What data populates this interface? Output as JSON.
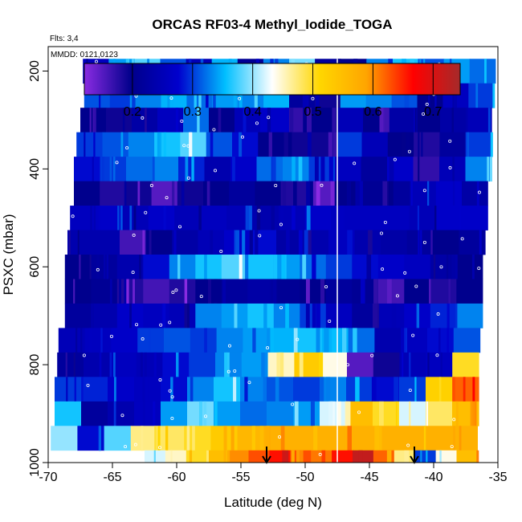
{
  "chart_data": {
    "type": "heatmap",
    "title": "ORCAS RF03-4 Methyl_Iodide_TOGA",
    "flights_label": "Flts: 3,4",
    "date_label": "MMDD: 0121,0123",
    "xlabel": "Latitude (deg N)",
    "ylabel": "PSXC (mbar)",
    "xlim": [
      -70,
      -35
    ],
    "ylim": [
      1000,
      150
    ],
    "x_ticks": [
      "-70",
      "-65",
      "-60",
      "-55",
      "-50",
      "-45",
      "-40",
      "-35"
    ],
    "y_ticks": [
      "200",
      "400",
      "600",
      "800",
      "1000"
    ],
    "colorbar": {
      "range": [
        0.12,
        0.745
      ],
      "ticks": [
        "0.2",
        "0.3",
        "0.4",
        "0.5",
        "0.6",
        "0.7"
      ],
      "gradient": [
        "#8a2be2",
        "#00008b",
        "#0000cd",
        "#00bfff",
        "#ffffff",
        "#ffd700",
        "#ffa500",
        "#ff0000",
        "#a52a2a"
      ]
    },
    "divider_latitude": -47.5,
    "arrows_latitude": [
      -53,
      -41.5
    ],
    "rows": [
      {
        "p": 200,
        "lat_start": -67.3,
        "lat_end": -35.2,
        "values": [
          0.26,
          0.34,
          0.38,
          0.31,
          0.25,
          0.35,
          0.21,
          0.33,
          0.39,
          0.22,
          0.2,
          0.33,
          0.36,
          0.31,
          0.34,
          0.32
        ]
      },
      {
        "p": 250,
        "lat_start": -67.2,
        "lat_end": -35.3,
        "values": [
          0.31,
          0.3,
          0.33,
          0.35,
          0.32,
          0.34,
          0.33,
          0.35,
          0.22,
          0.19,
          0.34,
          0.33,
          0.31,
          0.2,
          0.26,
          0.3
        ]
      },
      {
        "p": 300,
        "lat_start": -67.5,
        "lat_end": -35.5,
        "values": [
          0.2,
          0.19,
          0.23,
          0.26,
          0.32,
          0.2,
          0.25,
          0.27,
          0.17,
          0.2,
          0.25,
          0.2,
          0.23,
          0.2,
          0.23,
          0.25
        ]
      },
      {
        "p": 350,
        "lat_start": -67.8,
        "lat_end": -35.5,
        "values": [
          0.3,
          0.31,
          0.33,
          0.36,
          0.38,
          0.31,
          0.28,
          0.2,
          0.19,
          0.19,
          0.3,
          0.25,
          0.2,
          0.18,
          0.22,
          0.3
        ]
      },
      {
        "p": 400,
        "lat_start": -68.0,
        "lat_end": -35.5,
        "values": [
          0.28,
          0.3,
          0.32,
          0.33,
          0.29,
          0.24,
          0.27,
          0.32,
          0.33,
          0.3,
          0.26,
          0.22,
          0.27,
          0.17,
          0.25,
          0.33
        ]
      },
      {
        "p": 450,
        "lat_start": -68.0,
        "lat_end": -35.8,
        "values": [
          0.2,
          0.18,
          0.19,
          0.15,
          0.19,
          0.2,
          0.22,
          0.2,
          0.18,
          0.15,
          0.2,
          0.21,
          0.22,
          0.25,
          0.27,
          0.23
        ]
      },
      {
        "p": 500,
        "lat_start": -68.3,
        "lat_end": -35.8,
        "values": [
          0.26,
          0.27,
          0.25,
          0.27,
          0.25,
          0.26,
          0.25,
          0.24,
          0.25,
          0.27,
          0.26,
          0.26,
          0.26,
          0.25,
          0.27,
          0.27
        ]
      },
      {
        "p": 550,
        "lat_start": -68.5,
        "lat_end": -36.0,
        "values": [
          0.24,
          0.24,
          0.16,
          0.2,
          0.23,
          0.25,
          0.27,
          0.28,
          0.23,
          0.24,
          0.26,
          0.24,
          0.23,
          0.22,
          0.2,
          0.22
        ]
      },
      {
        "p": 600,
        "lat_start": -68.7,
        "lat_end": -36.2,
        "values": [
          0.2,
          0.22,
          0.24,
          0.28,
          0.33,
          0.36,
          0.38,
          0.36,
          0.34,
          0.32,
          0.3,
          0.28,
          0.27,
          0.26,
          0.23,
          0.2
        ]
      },
      {
        "p": 650,
        "lat_start": -68.7,
        "lat_end": -36.2,
        "values": [
          0.2,
          0.21,
          0.18,
          0.16,
          0.18,
          0.2,
          0.22,
          0.23,
          0.21,
          0.2,
          0.22,
          0.21,
          0.16,
          0.2,
          0.18,
          0.2
        ]
      },
      {
        "p": 700,
        "lat_start": -68.7,
        "lat_end": -36.2,
        "values": [
          0.22,
          0.24,
          0.27,
          0.26,
          0.25,
          0.33,
          0.34,
          0.36,
          0.33,
          0.3,
          0.26,
          0.22,
          0.25,
          0.27,
          0.29,
          0.33
        ]
      },
      {
        "p": 750,
        "lat_start": -69.2,
        "lat_end": -36.4,
        "values": [
          0.25,
          0.26,
          0.27,
          0.3,
          0.31,
          0.3,
          0.33,
          0.34,
          0.35,
          0.36,
          0.35,
          0.32,
          0.24,
          0.26,
          0.28,
          0.31
        ]
      },
      {
        "p": 800,
        "lat_start": -69.3,
        "lat_end": -36.5,
        "values": [
          0.22,
          0.24,
          0.26,
          0.25,
          0.28,
          0.3,
          0.33,
          0.34,
          0.45,
          0.53,
          0.44,
          0.15,
          0.19,
          0.25,
          0.26,
          0.5
        ]
      },
      {
        "p": 850,
        "lat_start": -69.5,
        "lat_end": -36.5,
        "values": [
          0.3,
          0.29,
          0.27,
          0.26,
          0.28,
          0.33,
          0.36,
          0.33,
          0.31,
          0.3,
          0.33,
          0.3,
          0.28,
          0.3,
          0.52,
          0.62
        ]
      },
      {
        "p": 900,
        "lat_start": -69.5,
        "lat_end": -36.5,
        "values": [
          0.36,
          0.22,
          0.24,
          0.26,
          0.34,
          0.39,
          0.34,
          0.32,
          0.33,
          0.34,
          0.42,
          0.55,
          0.5,
          0.42,
          0.48,
          0.55
        ]
      },
      {
        "p": 950,
        "lat_start": -69.8,
        "lat_end": -36.6,
        "values": [
          0.4,
          0.28,
          0.38,
          0.47,
          0.48,
          0.5,
          0.53,
          0.56,
          0.57,
          0.57,
          0.57,
          0.57,
          0.57,
          0.57,
          0.57,
          0.57
        ]
      },
      {
        "p": 1000,
        "lat_start": -62.5,
        "lat_end": -36.6,
        "values": [
          0.42,
          0.45,
          0.5,
          0.55,
          0.6,
          0.63,
          0.66,
          0.63,
          0.61,
          0.66,
          0.72,
          0.62,
          0.47,
          0.3,
          0.44,
          0.55
        ]
      }
    ]
  }
}
